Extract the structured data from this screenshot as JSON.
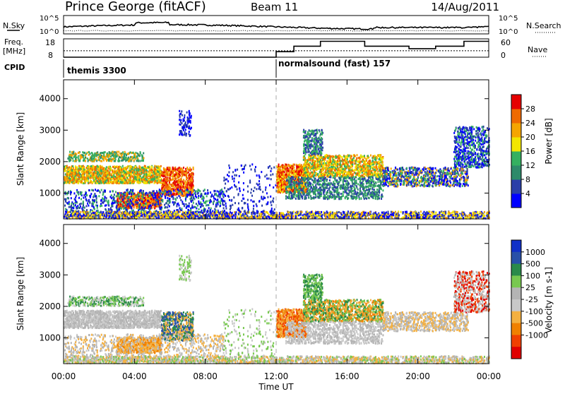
{
  "header": {
    "station": "Prince George (fitACF)",
    "beam": "Beam 11",
    "date": "14/Aug/2011"
  },
  "nsky_panel": {
    "left_label": "N.Sky",
    "right_label": "N.Search",
    "left_ticks": [
      "10^5",
      "10^0"
    ],
    "right_ticks": [
      "10^5",
      "10^0"
    ]
  },
  "freq_panel": {
    "left_label_1": "Freq.",
    "left_label_2": "[MHz]",
    "right_label": "Nave",
    "left_ticks": [
      "18",
      "8"
    ],
    "right_ticks": [
      "60",
      "0"
    ],
    "freq_level": 11.5,
    "nave_steps": [
      {
        "start": 0,
        "end": 12,
        "nave": 0
      },
      {
        "start": 12,
        "end": 13,
        "nave": 18
      },
      {
        "start": 13,
        "end": 14.5,
        "nave": 36
      },
      {
        "start": 14.5,
        "end": 17,
        "nave": 52
      },
      {
        "start": 17,
        "end": 19.5,
        "nave": 36
      },
      {
        "start": 19.5,
        "end": 21,
        "nave": 28
      },
      {
        "start": 21,
        "end": 22.6,
        "nave": 36
      },
      {
        "start": 22.6,
        "end": 24,
        "nave": 52
      }
    ]
  },
  "cpid": {
    "label": "CPID",
    "segments": [
      {
        "start": 0,
        "label": "themis 3300"
      },
      {
        "start": 12,
        "label": "normalsound (fast) 157"
      }
    ]
  },
  "colors": {
    "power": [
      "#0000ff",
      "#2a3fa8",
      "#2e8a6a",
      "#35b060",
      "#f2e600",
      "#f5a500",
      "#ef6a00",
      "#e60000"
    ],
    "velocity": [
      "#e00000",
      "#f04000",
      "#f08000",
      "#f4b040",
      "#c8c8c8",
      "#b4b4b4",
      "#78c850",
      "#2a8a4a",
      "#2850a8",
      "#1030c8"
    ]
  },
  "chart_data": [
    {
      "type": "heatmap",
      "name": "power",
      "ylabel": "Slant Range [km]",
      "ylim": [
        180,
        4600
      ],
      "yticks": [
        1000,
        2000,
        3000,
        4000
      ],
      "colorbar_label": "Power [dB]",
      "colorbar_ticks": [
        4,
        8,
        12,
        16,
        20,
        24,
        28
      ],
      "colorbar_range": [
        0,
        32
      ]
    },
    {
      "type": "heatmap",
      "name": "velocity",
      "ylabel": "Slant Range [km]",
      "xlabel": "Time UT",
      "ylim": [
        180,
        4600
      ],
      "yticks": [
        1000,
        2000,
        3000,
        4000
      ],
      "x_ticks": [
        "00:00",
        "04:00",
        "08:00",
        "12:00",
        "16:00",
        "20:00",
        "00:00"
      ],
      "xlim_hours": [
        0,
        24
      ],
      "colorbar_label": "Velocity [m s-1]",
      "colorbar_ticks": [
        "1000",
        "500",
        "100",
        "25",
        "-25",
        "-100",
        "-500",
        "-1000"
      ]
    }
  ]
}
